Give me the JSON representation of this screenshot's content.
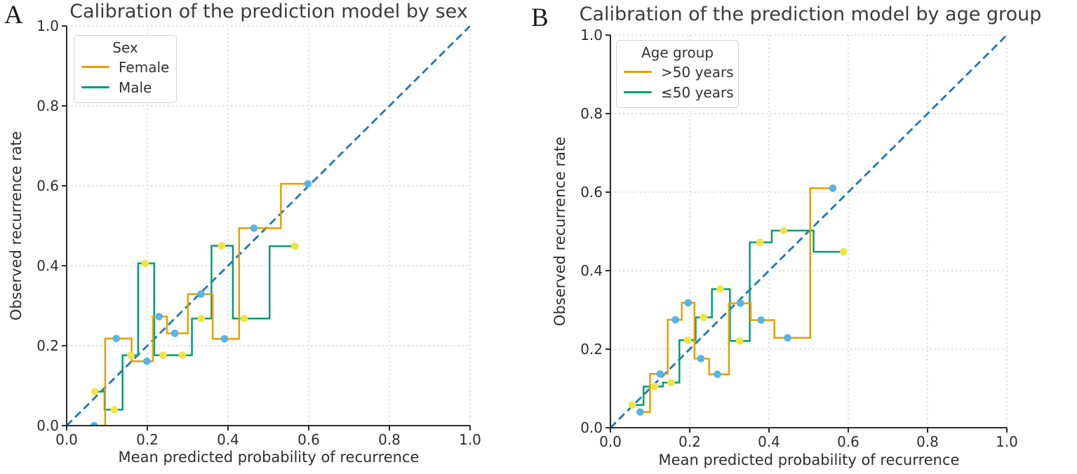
{
  "chart_data": [
    {
      "type": "line",
      "panel_label": "A",
      "title": "Calibration of the prediction model by sex",
      "xlabel": "Mean predicted probability of recurrence",
      "ylabel": "Observed recurrence rate",
      "xlim": [
        0,
        1
      ],
      "ylim": [
        0,
        1
      ],
      "xticks": [
        0,
        0.2,
        0.4,
        0.6,
        0.8,
        1
      ],
      "xtick_labels": [
        "0.0",
        "0.2",
        "0.4",
        "0.6",
        "0.8",
        "1.0"
      ],
      "yticks": [
        0,
        0.2,
        0.4,
        0.6,
        0.8,
        1
      ],
      "ytick_labels": [
        "0.0",
        "0.2",
        "0.4",
        "0.6",
        "0.8",
        "1.0"
      ],
      "grid": true,
      "legend": {
        "title": "Sex",
        "position": "upper left",
        "entries": [
          {
            "label": "Female",
            "color": "#E69F00"
          },
          {
            "label": "Male",
            "color": "#009E73"
          }
        ]
      },
      "reference_line": {
        "name": "diagonal-identity",
        "from": [
          0,
          0
        ],
        "to": [
          1,
          1
        ],
        "style": "dashed",
        "color": "#1f77b4"
      },
      "series": [
        {
          "name": "Female",
          "step": "mid",
          "line_color": "#E69F00",
          "marker": "circle",
          "marker_color": "#56B4E9",
          "points": [
            [
              0.068,
              0.0
            ],
            [
              0.123,
              0.218
            ],
            [
              0.199,
              0.161
            ],
            [
              0.229,
              0.273
            ],
            [
              0.268,
              0.231
            ],
            [
              0.333,
              0.329
            ],
            [
              0.391,
              0.217
            ],
            [
              0.464,
              0.494
            ],
            [
              0.598,
              0.605
            ]
          ]
        },
        {
          "name": "Male",
          "step": "mid",
          "line_color": "#009E73",
          "marker": "circle",
          "marker_color": "#F0E442",
          "points": [
            [
              0.07,
              0.085
            ],
            [
              0.118,
              0.04
            ],
            [
              0.159,
              0.176
            ],
            [
              0.195,
              0.406
            ],
            [
              0.239,
              0.176
            ],
            [
              0.287,
              0.176
            ],
            [
              0.334,
              0.268
            ],
            [
              0.384,
              0.45
            ],
            [
              0.44,
              0.268
            ],
            [
              0.566,
              0.449
            ]
          ]
        }
      ]
    },
    {
      "type": "line",
      "panel_label": "B",
      "title": "Calibration of the prediction model by age group",
      "xlabel": "Mean predicted probability of recurrence",
      "ylabel": "Observed recurrence rate",
      "xlim": [
        0,
        1
      ],
      "ylim": [
        0,
        1
      ],
      "xticks": [
        0,
        0.2,
        0.4,
        0.6,
        0.8,
        1
      ],
      "xtick_labels": [
        "0.0",
        "0.2",
        "0.4",
        "0.6",
        "0.8",
        "1.0"
      ],
      "yticks": [
        0,
        0.2,
        0.4,
        0.6,
        0.8,
        1
      ],
      "ytick_labels": [
        "0.0",
        "0.2",
        "0.4",
        "0.6",
        "0.8",
        "1.0"
      ],
      "grid": true,
      "legend": {
        "title": "Age group",
        "position": "upper left",
        "entries": [
          {
            "label": ">50 years",
            "color": "#E69F00"
          },
          {
            "label": "≤50 years",
            "color": "#009E73"
          }
        ]
      },
      "reference_line": {
        "name": "diagonal-identity",
        "from": [
          0,
          0
        ],
        "to": [
          1,
          1
        ],
        "style": "dashed",
        "color": "#1f77b4"
      },
      "series": [
        {
          "name": ">50 years",
          "step": "mid",
          "line_color": "#E69F00",
          "marker": "circle",
          "marker_color": "#56B4E9",
          "points": [
            [
              0.075,
              0.04
            ],
            [
              0.125,
              0.137
            ],
            [
              0.164,
              0.275
            ],
            [
              0.196,
              0.318
            ],
            [
              0.228,
              0.176
            ],
            [
              0.27,
              0.136
            ],
            [
              0.328,
              0.317
            ],
            [
              0.38,
              0.274
            ],
            [
              0.447,
              0.229
            ],
            [
              0.561,
              0.61
            ]
          ]
        },
        {
          "name": "≤50 years",
          "step": "mid",
          "line_color": "#009E73",
          "marker": "circle",
          "marker_color": "#F0E442",
          "points": [
            [
              0.055,
              0.058
            ],
            [
              0.112,
              0.105
            ],
            [
              0.153,
              0.115
            ],
            [
              0.195,
              0.223
            ],
            [
              0.235,
              0.281
            ],
            [
              0.277,
              0.353
            ],
            [
              0.326,
              0.221
            ],
            [
              0.377,
              0.472
            ],
            [
              0.437,
              0.502
            ],
            [
              0.588,
              0.448
            ]
          ]
        }
      ]
    }
  ],
  "style": {
    "grid_color": "#cdcdcd",
    "spine_color": "#2b2b2b",
    "text_color": "#2d2d2d",
    "background": "#ffffff"
  }
}
